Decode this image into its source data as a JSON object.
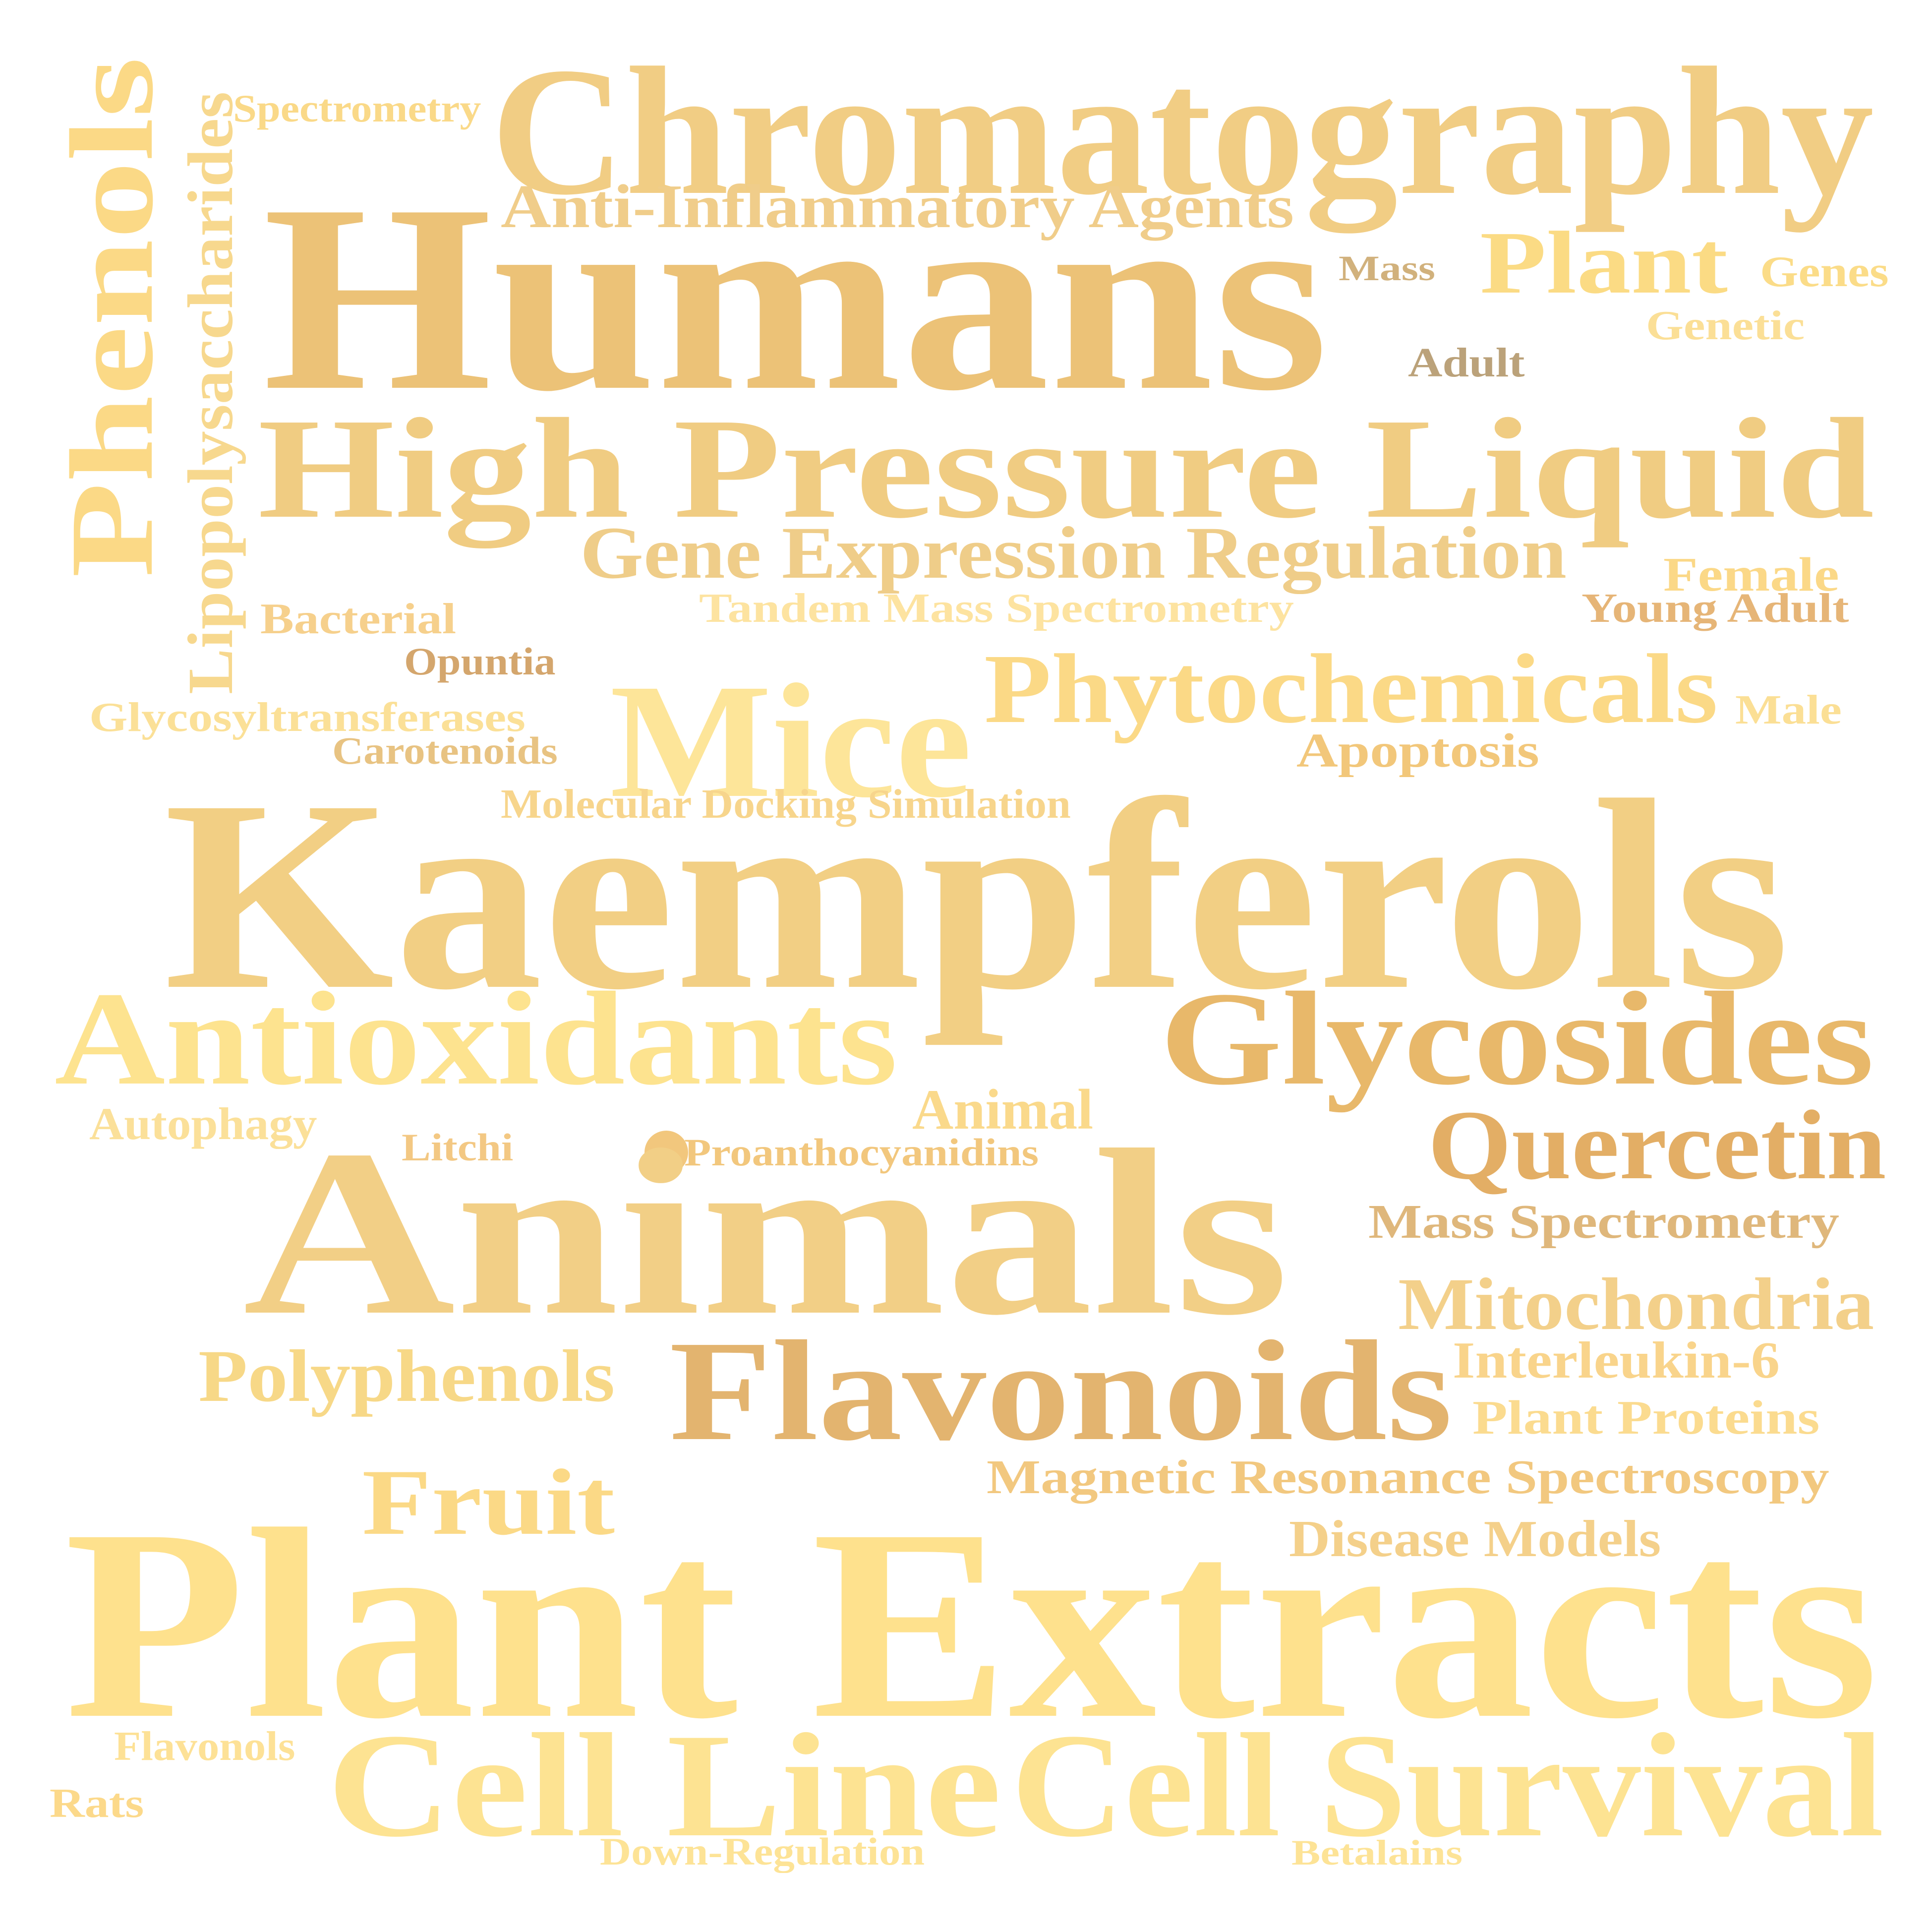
{
  "words": [
    {
      "text": "Chromatography",
      "color": "#f1cd84"
    },
    {
      "text": "Humans",
      "color": "#ecc277"
    },
    {
      "text": "High Pressure Liquid",
      "color": "#f0cc82"
    },
    {
      "text": "Phenols",
      "color": "#fbd986"
    },
    {
      "text": "Lipopolysaccharides",
      "color": "#f7d88e"
    },
    {
      "text": "Spectrometry",
      "color": "#fad988"
    },
    {
      "text": "Anti-Inflammatory Agents",
      "color": "#f0cd8a"
    },
    {
      "text": "Mass",
      "color": "#d1b17c"
    },
    {
      "text": "Plant",
      "color": "#fbdb84"
    },
    {
      "text": "Genes",
      "color": "#fbdc88"
    },
    {
      "text": "Genetic",
      "color": "#fbdf96"
    },
    {
      "text": "Adult",
      "color": "#bba27a"
    },
    {
      "text": "Gene Expression Regulation",
      "color": "#efcd89"
    },
    {
      "text": "Female",
      "color": "#fbd887"
    },
    {
      "text": "Young Adult",
      "color": "#e6b577"
    },
    {
      "text": "Bacterial",
      "color": "#f6d08c"
    },
    {
      "text": "Tandem Mass Spectrometry",
      "color": "#fde3a0"
    },
    {
      "text": "Opuntia",
      "color": "#d4a66d"
    },
    {
      "text": "Mice",
      "color": "#fde599"
    },
    {
      "text": "Phytochemicals",
      "color": "#fbd986"
    },
    {
      "text": "Male",
      "color": "#fbdf95"
    },
    {
      "text": "Glycosyltransferases",
      "color": "#fbe097"
    },
    {
      "text": "Carotenoids",
      "color": "#e8c382"
    },
    {
      "text": "Apoptosis",
      "color": "#f2c77a"
    },
    {
      "text": "Molecular Docking Simulation",
      "color": "#f7d58c"
    },
    {
      "text": "Kaempferols",
      "color": "#f2cf84"
    },
    {
      "text": "Antioxidants",
      "color": "#fde38f"
    },
    {
      "text": "Glycosides",
      "color": "#e8b86a"
    },
    {
      "text": "Autophagy",
      "color": "#fbe099"
    },
    {
      "text": "Animal",
      "color": "#fad98b"
    },
    {
      "text": "Quercetin",
      "color": "#e3ae65"
    },
    {
      "text": "Litchi",
      "color": "#f3c883"
    },
    {
      "text": "Proanthocyanidins",
      "color": "#f2c77d"
    },
    {
      "text": "Animals",
      "color": "#f2cf86"
    },
    {
      "text": "Mass Spectrometry",
      "color": "#dfb77b"
    },
    {
      "text": "Mitochondria",
      "color": "#f3d08a"
    },
    {
      "text": "Polyphenols",
      "color": "#f7d887"
    },
    {
      "text": "Flavonoids",
      "color": "#e3b46f"
    },
    {
      "text": "Interleukin-6",
      "color": "#f9d48b"
    },
    {
      "text": "Plant Proteins",
      "color": "#fbdb8f"
    },
    {
      "text": "Magnetic Resonance Spectroscopy",
      "color": "#f2c87f"
    },
    {
      "text": "Fruit",
      "color": "#fbd986"
    },
    {
      "text": "Disease Models",
      "color": "#f4d08a"
    },
    {
      "text": "Plant Extracts",
      "color": "#fee18d"
    },
    {
      "text": "Flavonols",
      "color": "#fde196"
    },
    {
      "text": "Cell Line",
      "color": "#fde392"
    },
    {
      "text": "Cell Survival",
      "color": "#fde392"
    },
    {
      "text": "Rats",
      "color": "#fcd98a"
    },
    {
      "text": "Down-Regulation",
      "color": "#fde396"
    },
    {
      "text": "Betalains",
      "color": "#fde396"
    }
  ],
  "dot_color": "#f2c77d"
}
